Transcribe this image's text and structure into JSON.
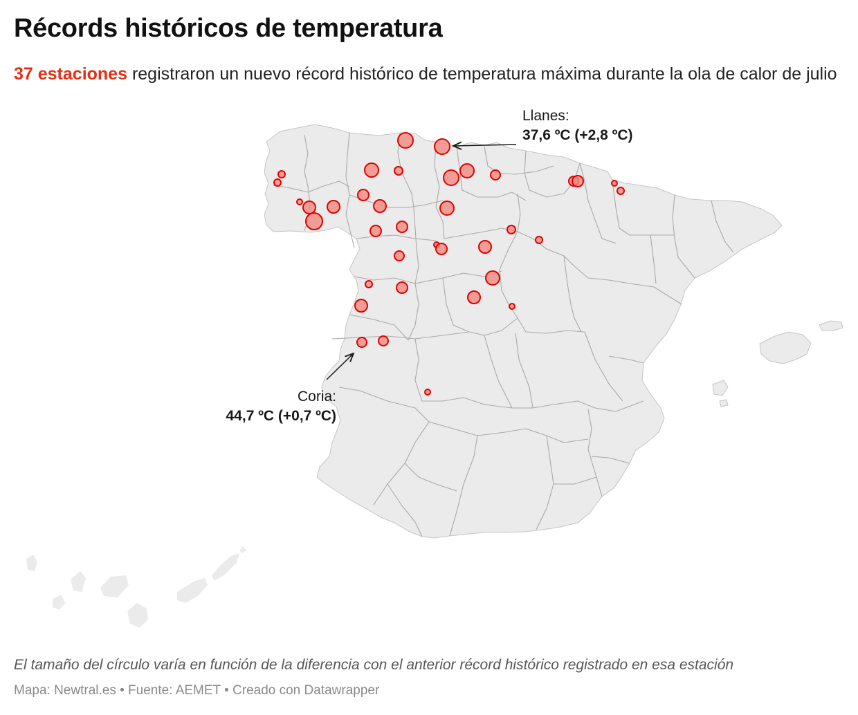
{
  "title": "Récords históricos de temperatura",
  "subtitle": {
    "highlight": "37 estaciones",
    "rest": " registraron un nuevo récord histórico de temperatura máxima durante la ola de calor de julio"
  },
  "annotations": {
    "llanes": {
      "label": "Llanes:",
      "value": "37,6 ºC (+2,8 ºC)"
    },
    "coria": {
      "label": "Coria:",
      "value": "44,7 ºC (+0,7 ºC)"
    }
  },
  "note": "El tamaño del círculo varía en función de la diferencia con el anterior récord histórico registrado en esa estación",
  "credits": "Mapa: Newtral.es • Fuente: AEMET • Creado con Datawrapper",
  "colors": {
    "land": "#ebebeb",
    "borders": "#a9a9a9",
    "marker_fill": "#f08a80",
    "marker_stroke": "#e00000",
    "accent": "#e52e14"
  }
}
